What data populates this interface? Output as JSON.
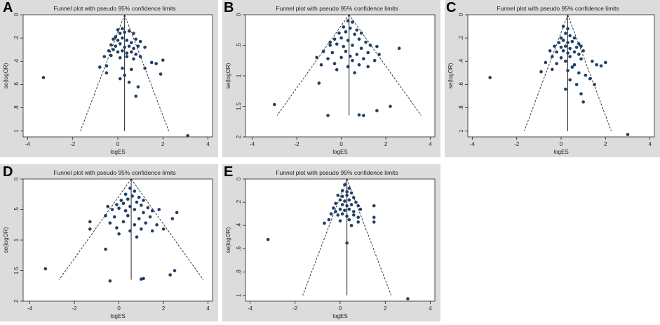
{
  "colors": {
    "point": "#1f3f66",
    "frame": "#222222",
    "plot_bg": "#ffffff",
    "outer_bg": "#dcdcdc",
    "text": "#222222"
  },
  "chart_data": [
    {
      "panel_letter": "A",
      "type": "scatter",
      "title": "Funnel plot with pseudo 95% confidence limits",
      "xlabel": "logES",
      "ylabel": "se(logOR)",
      "xlim": [
        -4.2,
        4.2
      ],
      "ylim": [
        0,
        1.05
      ],
      "y_inverted": true,
      "xticks": [
        -4,
        -2,
        0,
        2,
        4
      ],
      "xtick_labels": [
        "-4",
        "-2",
        "0",
        "2",
        "4"
      ],
      "yticks": [
        0,
        0.2,
        0.4,
        0.6,
        0.8,
        1
      ],
      "ytick_labels": [
        "0",
        ".2",
        ".4",
        ".6",
        ".8",
        "1"
      ],
      "pooled_estimate": 0.3,
      "se_max": 1.0,
      "points": [
        [
          -3.3,
          0.54
        ],
        [
          3.1,
          1.04
        ],
        [
          0.0,
          0.13
        ],
        [
          0.2,
          0.12
        ],
        [
          0.1,
          0.16
        ],
        [
          -0.1,
          0.19
        ],
        [
          0.3,
          0.15
        ],
        [
          0.5,
          0.14
        ],
        [
          0.7,
          0.16
        ],
        [
          -0.2,
          0.21
        ],
        [
          0.0,
          0.22
        ],
        [
          0.2,
          0.2
        ],
        [
          0.4,
          0.22
        ],
        [
          0.6,
          0.24
        ],
        [
          0.8,
          0.21
        ],
        [
          1.0,
          0.23
        ],
        [
          -0.3,
          0.26
        ],
        [
          -0.1,
          0.27
        ],
        [
          0.1,
          0.25
        ],
        [
          0.3,
          0.28
        ],
        [
          0.5,
          0.27
        ],
        [
          0.7,
          0.29
        ],
        [
          0.9,
          0.27
        ],
        [
          1.2,
          0.28
        ],
        [
          -0.4,
          0.31
        ],
        [
          -0.2,
          0.3
        ],
        [
          0.0,
          0.32
        ],
        [
          0.2,
          0.31
        ],
        [
          0.4,
          0.33
        ],
        [
          0.6,
          0.32
        ],
        [
          0.8,
          0.34
        ],
        [
          -0.6,
          0.36
        ],
        [
          -0.3,
          0.35
        ],
        [
          0.1,
          0.37
        ],
        [
          0.4,
          0.36
        ],
        [
          0.7,
          0.38
        ],
        [
          1.0,
          0.36
        ],
        [
          1.5,
          0.41
        ],
        [
          1.7,
          0.42
        ],
        [
          2.0,
          0.39
        ],
        [
          -0.8,
          0.45
        ],
        [
          -0.5,
          0.44
        ],
        [
          0.2,
          0.46
        ],
        [
          0.6,
          0.47
        ],
        [
          1.2,
          0.46
        ],
        [
          1.9,
          0.51
        ],
        [
          0.1,
          0.55
        ],
        [
          0.5,
          0.58
        ],
        [
          0.9,
          0.62
        ],
        [
          0.8,
          0.7
        ],
        [
          -0.5,
          0.5
        ],
        [
          0.3,
          0.52
        ]
      ]
    },
    {
      "panel_letter": "B",
      "type": "scatter",
      "title": "Funnel plot with pseudo 95% confidence limits",
      "xlabel": "logES",
      "ylabel": "se(logOR)",
      "xlim": [
        -4.3,
        4.2
      ],
      "ylim": [
        0,
        2
      ],
      "y_inverted": true,
      "xticks": [
        -4,
        -2,
        0,
        2,
        4
      ],
      "xtick_labels": [
        "-4",
        "-2",
        "0",
        "2",
        "4"
      ],
      "yticks": [
        0,
        0.5,
        1,
        1.5,
        2
      ],
      "ytick_labels": [
        "0",
        ".5",
        "1",
        "1.5",
        "2"
      ],
      "pooled_estimate": 0.35,
      "se_max": 1.65,
      "points": [
        [
          0.3,
          0.1
        ],
        [
          0.5,
          0.12
        ],
        [
          0.1,
          0.2
        ],
        [
          0.4,
          0.22
        ],
        [
          0.7,
          0.25
        ],
        [
          -0.1,
          0.3
        ],
        [
          0.2,
          0.28
        ],
        [
          0.6,
          0.32
        ],
        [
          0.9,
          0.3
        ],
        [
          -0.3,
          0.4
        ],
        [
          0.0,
          0.38
        ],
        [
          0.3,
          0.42
        ],
        [
          0.8,
          0.4
        ],
        [
          1.1,
          0.45
        ],
        [
          -0.5,
          0.5
        ],
        [
          -0.2,
          0.48
        ],
        [
          0.1,
          0.52
        ],
        [
          0.5,
          0.5
        ],
        [
          0.9,
          0.55
        ],
        [
          1.3,
          0.5
        ],
        [
          1.6,
          0.52
        ],
        [
          2.6,
          0.55
        ],
        [
          -0.8,
          0.6
        ],
        [
          -0.4,
          0.62
        ],
        [
          0.2,
          0.6
        ],
        [
          0.7,
          0.65
        ],
        [
          1.2,
          0.62
        ],
        [
          1.7,
          0.65
        ],
        [
          -1.1,
          0.7
        ],
        [
          -0.6,
          0.72
        ],
        [
          0.0,
          0.7
        ],
        [
          0.5,
          0.75
        ],
        [
          1.0,
          0.72
        ],
        [
          1.5,
          0.75
        ],
        [
          -0.9,
          0.82
        ],
        [
          -0.3,
          0.8
        ],
        [
          0.3,
          0.85
        ],
        [
          0.8,
          0.82
        ],
        [
          -0.2,
          0.9
        ],
        [
          0.6,
          0.95
        ],
        [
          -1.0,
          1.12
        ],
        [
          -3.0,
          1.47
        ],
        [
          -0.6,
          1.65
        ],
        [
          0.8,
          1.64
        ],
        [
          1.0,
          1.65
        ],
        [
          1.6,
          1.57
        ],
        [
          2.2,
          1.5
        ],
        [
          -0.5,
          0.45
        ],
        [
          1.2,
          0.85
        ],
        [
          0.4,
          0.68
        ]
      ]
    },
    {
      "panel_letter": "C",
      "type": "scatter",
      "title": "Funnel plot with pseudo 95% confidence limits",
      "xlabel": "logES",
      "ylabel": "se(logOR)",
      "xlim": [
        -4.2,
        4.2
      ],
      "ylim": [
        0,
        1.05
      ],
      "y_inverted": true,
      "xticks": [
        -4,
        -2,
        0,
        2,
        4
      ],
      "xtick_labels": [
        "-4",
        "-2",
        "0",
        "2",
        "4"
      ],
      "yticks": [
        0,
        0.2,
        0.4,
        0.6,
        0.8,
        1
      ],
      "ytick_labels": [
        "0",
        ".2",
        ".4",
        ".6",
        ".8",
        "1"
      ],
      "pooled_estimate": 0.3,
      "se_max": 1.0,
      "points": [
        [
          -3.2,
          0.54
        ],
        [
          3.0,
          1.03
        ],
        [
          0.1,
          0.1
        ],
        [
          0.3,
          0.12
        ],
        [
          0.2,
          0.16
        ],
        [
          0.0,
          0.2
        ],
        [
          0.4,
          0.18
        ],
        [
          0.6,
          0.2
        ],
        [
          -0.1,
          0.24
        ],
        [
          0.1,
          0.22
        ],
        [
          0.3,
          0.24
        ],
        [
          0.5,
          0.23
        ],
        [
          0.8,
          0.25
        ],
        [
          -0.3,
          0.27
        ],
        [
          0.0,
          0.28
        ],
        [
          0.2,
          0.27
        ],
        [
          0.4,
          0.29
        ],
        [
          0.7,
          0.28
        ],
        [
          0.9,
          0.27
        ],
        [
          -0.5,
          0.31
        ],
        [
          -0.2,
          0.32
        ],
        [
          0.1,
          0.31
        ],
        [
          0.3,
          0.33
        ],
        [
          0.6,
          0.32
        ],
        [
          0.8,
          0.34
        ],
        [
          1.0,
          0.31
        ],
        [
          -0.4,
          0.36
        ],
        [
          0.0,
          0.37
        ],
        [
          0.4,
          0.36
        ],
        [
          0.9,
          0.38
        ],
        [
          -0.7,
          0.41
        ],
        [
          -0.2,
          0.42
        ],
        [
          0.2,
          0.4
        ],
        [
          0.6,
          0.43
        ],
        [
          1.4,
          0.4
        ],
        [
          1.6,
          0.43
        ],
        [
          1.8,
          0.44
        ],
        [
          2.0,
          0.41
        ],
        [
          -0.9,
          0.49
        ],
        [
          -0.4,
          0.47
        ],
        [
          0.3,
          0.48
        ],
        [
          0.8,
          0.5
        ],
        [
          1.1,
          0.52
        ],
        [
          0.4,
          0.56
        ],
        [
          0.7,
          0.6
        ],
        [
          1.3,
          0.55
        ],
        [
          1.5,
          0.6
        ],
        [
          0.2,
          0.64
        ],
        [
          0.9,
          0.68
        ],
        [
          1.0,
          0.75
        ],
        [
          0.5,
          0.45
        ]
      ]
    },
    {
      "panel_letter": "D",
      "type": "scatter",
      "title": "Funnel plot with pseudo 95% confidence limits",
      "xlabel": "logES",
      "ylabel": "se(logOR)",
      "xlim": [
        -4.3,
        4.2
      ],
      "ylim": [
        0,
        2
      ],
      "y_inverted": true,
      "xticks": [
        -4,
        -2,
        0,
        2,
        4
      ],
      "xtick_labels": [
        "-4",
        "-2",
        "0",
        "2",
        "4"
      ],
      "yticks": [
        0,
        0.5,
        1,
        1.5,
        2
      ],
      "ytick_labels": [
        "0",
        ".5",
        "1",
        "1.5",
        "2"
      ],
      "pooled_estimate": 0.55,
      "se_max": 1.65,
      "points": [
        [
          0.5,
          0.15
        ],
        [
          0.7,
          0.2
        ],
        [
          0.3,
          0.25
        ],
        [
          0.6,
          0.28
        ],
        [
          0.9,
          0.3
        ],
        [
          0.1,
          0.35
        ],
        [
          0.4,
          0.33
        ],
        [
          0.8,
          0.38
        ],
        [
          1.1,
          0.35
        ],
        [
          -0.1,
          0.42
        ],
        [
          0.2,
          0.4
        ],
        [
          0.5,
          0.45
        ],
        [
          1.0,
          0.43
        ],
        [
          1.3,
          0.47
        ],
        [
          -0.3,
          0.5
        ],
        [
          0.0,
          0.48
        ],
        [
          0.3,
          0.52
        ],
        [
          0.7,
          0.5
        ],
        [
          1.1,
          0.55
        ],
        [
          1.5,
          0.52
        ],
        [
          1.8,
          0.5
        ],
        [
          2.6,
          0.55
        ],
        [
          -0.6,
          0.6
        ],
        [
          -0.2,
          0.62
        ],
        [
          0.4,
          0.6
        ],
        [
          0.9,
          0.65
        ],
        [
          1.4,
          0.62
        ],
        [
          2.4,
          0.65
        ],
        [
          -1.3,
          0.7
        ],
        [
          -0.4,
          0.72
        ],
        [
          0.2,
          0.7
        ],
        [
          0.7,
          0.75
        ],
        [
          1.2,
          0.72
        ],
        [
          1.7,
          0.75
        ],
        [
          -1.3,
          0.82
        ],
        [
          -0.1,
          0.8
        ],
        [
          0.5,
          0.85
        ],
        [
          1.0,
          0.82
        ],
        [
          2.0,
          0.82
        ],
        [
          0.0,
          0.9
        ],
        [
          0.8,
          0.95
        ],
        [
          -0.6,
          1.15
        ],
        [
          -3.3,
          1.47
        ],
        [
          -0.4,
          1.67
        ],
        [
          1.0,
          1.64
        ],
        [
          1.1,
          1.63
        ],
        [
          2.3,
          1.57
        ],
        [
          2.5,
          1.5
        ],
        [
          -0.5,
          0.45
        ],
        [
          1.5,
          0.85
        ]
      ]
    },
    {
      "panel_letter": "E",
      "type": "scatter",
      "title": "Funnel plot with pseudo 95% confidence limits",
      "xlabel": "logES",
      "ylabel": "se(logOR)",
      "xlim": [
        -4.2,
        4.2
      ],
      "ylim": [
        0,
        1.05
      ],
      "y_inverted": true,
      "xticks": [
        -4,
        -2,
        0,
        2,
        4
      ],
      "xtick_labels": [
        "-4",
        "-2",
        "0",
        "2",
        "4"
      ],
      "yticks": [
        0,
        0.2,
        0.4,
        0.6,
        0.8,
        1
      ],
      "ytick_labels": [
        "0",
        ".2",
        ".4",
        ".6",
        ".8",
        "1"
      ],
      "pooled_estimate": 0.3,
      "se_max": 1.0,
      "points": [
        [
          -3.2,
          0.52
        ],
        [
          3.0,
          1.03
        ],
        [
          0.2,
          0.05
        ],
        [
          0.4,
          0.08
        ],
        [
          0.1,
          0.1
        ],
        [
          0.3,
          0.11
        ],
        [
          0.5,
          0.12
        ],
        [
          -0.1,
          0.14
        ],
        [
          0.1,
          0.15
        ],
        [
          0.3,
          0.14
        ],
        [
          0.6,
          0.16
        ],
        [
          0.0,
          0.18
        ],
        [
          0.2,
          0.19
        ],
        [
          0.4,
          0.18
        ],
        [
          0.7,
          0.2
        ],
        [
          -0.2,
          0.21
        ],
        [
          0.1,
          0.22
        ],
        [
          0.3,
          0.23
        ],
        [
          0.5,
          0.22
        ],
        [
          0.8,
          0.23
        ],
        [
          -0.3,
          0.25
        ],
        [
          0.0,
          0.26
        ],
        [
          0.2,
          0.27
        ],
        [
          0.4,
          0.26
        ],
        [
          0.6,
          0.28
        ],
        [
          0.9,
          0.26
        ],
        [
          1.5,
          0.23
        ],
        [
          -0.4,
          0.3
        ],
        [
          -0.1,
          0.31
        ],
        [
          0.1,
          0.3
        ],
        [
          0.3,
          0.32
        ],
        [
          0.6,
          0.31
        ],
        [
          0.8,
          0.33
        ],
        [
          -0.5,
          0.35
        ],
        [
          0.0,
          0.36
        ],
        [
          0.4,
          0.35
        ],
        [
          0.8,
          0.37
        ],
        [
          1.5,
          0.33
        ],
        [
          1.5,
          0.37
        ],
        [
          -0.2,
          0.28
        ],
        [
          0.5,
          0.4
        ],
        [
          0.3,
          0.55
        ],
        [
          -0.7,
          0.38
        ]
      ]
    }
  ]
}
